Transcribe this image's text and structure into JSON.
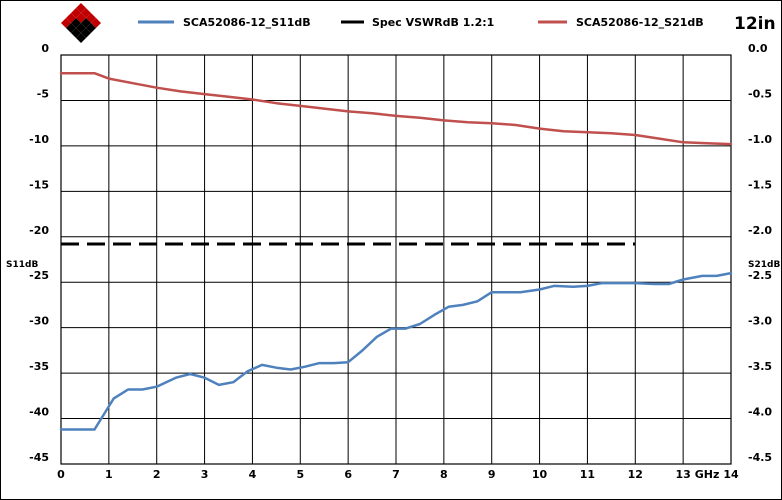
{
  "chart_data": {
    "type": "line",
    "badge": "12in",
    "x_unit": "GHz",
    "xlim": [
      0,
      14
    ],
    "x_ticks": [
      0,
      1,
      2,
      3,
      4,
      5,
      6,
      7,
      8,
      9,
      10,
      11,
      12,
      13,
      14
    ],
    "x_tick_labels": [
      "0",
      "1",
      "2",
      "3",
      "4",
      "5",
      "6",
      "7",
      "8",
      "9",
      "10",
      "11",
      "12",
      "13",
      "14"
    ],
    "y_left": {
      "label": "S11dB",
      "lim": [
        -45,
        0
      ],
      "ticks": [
        0,
        -5,
        -10,
        -15,
        -20,
        -25,
        -30,
        -35,
        -40,
        -45
      ],
      "tick_labels": [
        "0",
        "-5",
        "-10",
        "-15",
        "-20",
        "-25",
        "-30",
        "-35",
        "-40",
        "-45"
      ]
    },
    "y_right": {
      "label": "S21dB",
      "lim": [
        -4.5,
        0
      ],
      "ticks": [
        0,
        -0.5,
        -1.0,
        -1.5,
        -2.0,
        -2.5,
        -3.0,
        -3.5,
        -4.0,
        -4.5
      ],
      "tick_labels": [
        "0.0",
        "-0.5",
        "-1.0",
        "-1.5",
        "-2.0",
        "-2.5",
        "-3.0",
        "-3.5",
        "-4.0",
        "-4.5"
      ]
    },
    "grid": true,
    "legend_position": "top",
    "series": [
      {
        "name": "SCA52086-12_S11dB",
        "axis": "left",
        "color": "#4f81bd",
        "dash": "solid",
        "x": [
          0,
          0.7,
          0.9,
          1.1,
          1.4,
          1.7,
          2.0,
          2.4,
          2.7,
          3.0,
          3.3,
          3.6,
          3.9,
          4.2,
          4.5,
          4.8,
          5.1,
          5.4,
          5.7,
          6.0,
          6.3,
          6.6,
          6.9,
          7.2,
          7.5,
          7.8,
          8.1,
          8.4,
          8.7,
          9.0,
          9.3,
          9.6,
          10.0,
          10.3,
          10.7,
          11.0,
          11.3,
          11.7,
          12.0,
          12.4,
          12.7,
          13.0,
          13.4,
          13.7,
          14.0
        ],
        "y": [
          -41.2,
          -41.2,
          -39.5,
          -37.8,
          -36.8,
          -36.8,
          -36.5,
          -35.5,
          -35.1,
          -35.5,
          -36.3,
          -36.0,
          -34.8,
          -34.1,
          -34.4,
          -34.6,
          -34.3,
          -33.9,
          -33.9,
          -33.8,
          -32.5,
          -31.0,
          -30.1,
          -30.1,
          -29.6,
          -28.6,
          -27.7,
          -27.5,
          -27.1,
          -26.1,
          -26.1,
          -26.1,
          -25.8,
          -25.4,
          -25.5,
          -25.4,
          -25.1,
          -25.1,
          -25.1,
          -25.2,
          -25.2,
          -24.7,
          -24.3,
          -24.3,
          -24.0
        ]
      },
      {
        "name": "Spec VSWRdB 1.2:1",
        "axis": "left",
        "color": "#000000",
        "dash": "dashed",
        "x": [
          0,
          12
        ],
        "y": [
          -20.8,
          -20.8
        ]
      },
      {
        "name": "SCA52086-12_S21dB",
        "axis": "right",
        "color": "#c0504d",
        "dash": "solid",
        "x": [
          0,
          0.7,
          1.0,
          1.5,
          2.0,
          2.5,
          3.0,
          3.5,
          4.0,
          4.5,
          5.0,
          5.5,
          6.0,
          6.5,
          7.0,
          7.5,
          8.0,
          8.5,
          9.0,
          9.5,
          10.0,
          10.5,
          11.0,
          11.5,
          12.0,
          12.5,
          13.0,
          13.5,
          14.0
        ],
        "y": [
          -0.2,
          -0.2,
          -0.26,
          -0.31,
          -0.36,
          -0.4,
          -0.43,
          -0.46,
          -0.49,
          -0.53,
          -0.56,
          -0.59,
          -0.62,
          -0.64,
          -0.67,
          -0.69,
          -0.72,
          -0.74,
          -0.75,
          -0.77,
          -0.81,
          -0.84,
          -0.85,
          -0.86,
          -0.88,
          -0.92,
          -0.96,
          -0.97,
          -0.98
        ]
      }
    ]
  }
}
